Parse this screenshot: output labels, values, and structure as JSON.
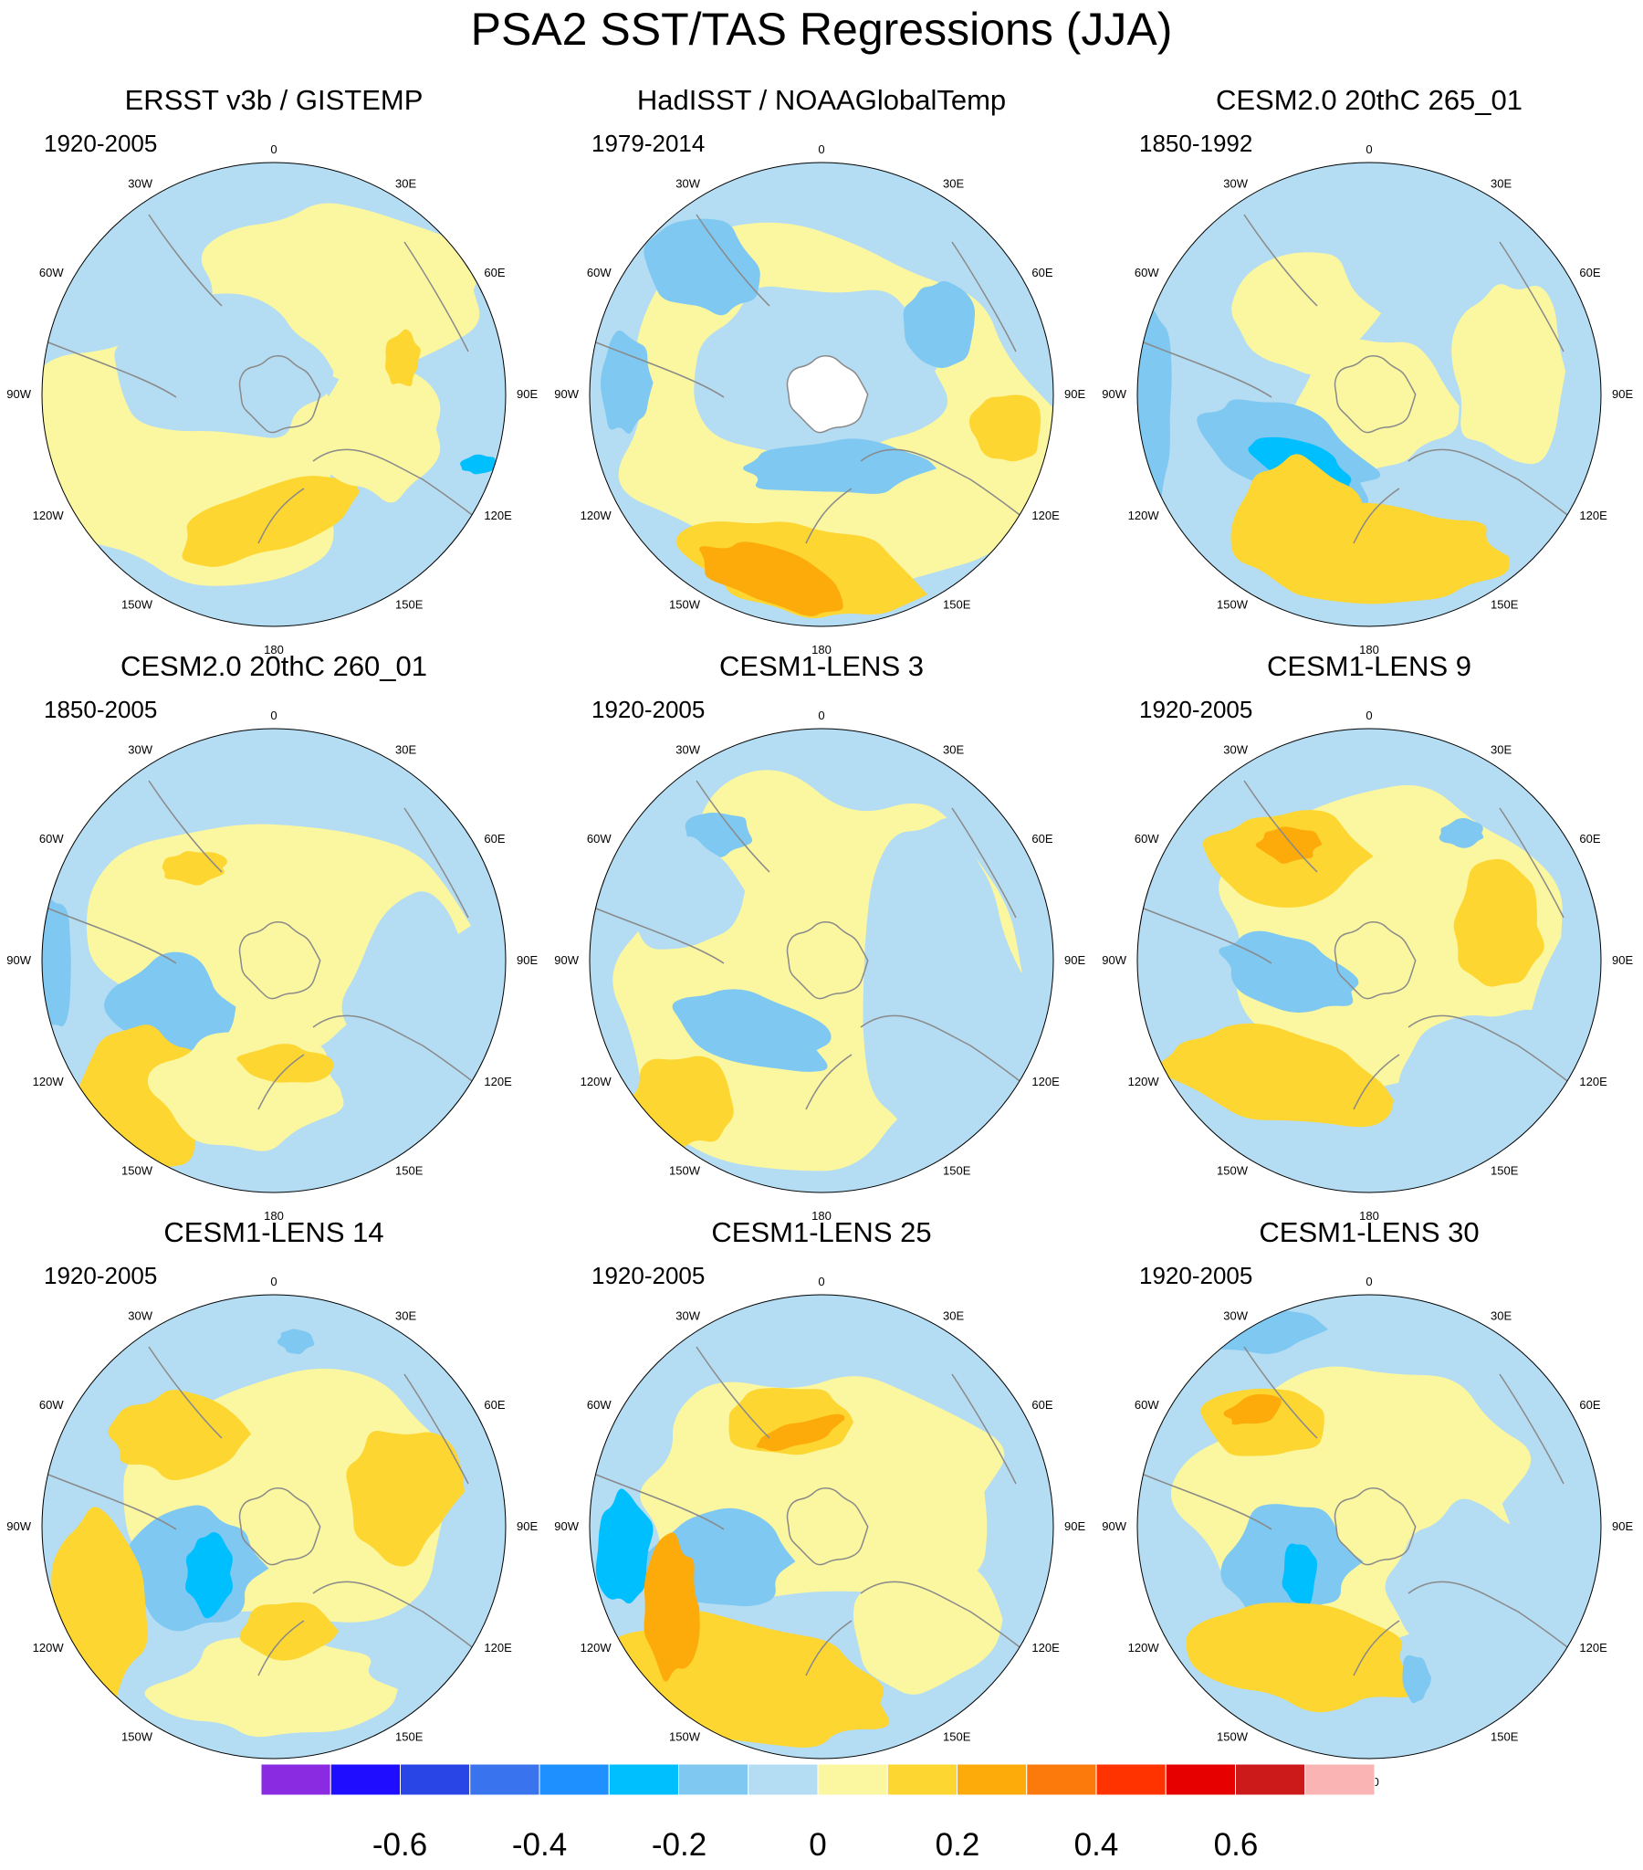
{
  "figure": {
    "title": "PSA2 SST/TAS Regressions (JJA)"
  },
  "panels": [
    {
      "title": "ERSST v3b / GISTEMP",
      "period": "1920-2005"
    },
    {
      "title": "HadISST / NOAAGlobalTemp",
      "period": "1979-2014"
    },
    {
      "title": "CESM2.0 20thC 265_01",
      "period": "1850-1992"
    },
    {
      "title": "CESM2.0 20thC 260_01",
      "period": "1850-2005"
    },
    {
      "title": "CESM1-LENS 3",
      "period": "1920-2005"
    },
    {
      "title": "CESM1-LENS 9",
      "period": "1920-2005"
    },
    {
      "title": "CESM1-LENS 14",
      "period": "1920-2005"
    },
    {
      "title": "CESM1-LENS 25",
      "period": "1920-2005"
    },
    {
      "title": "CESM1-LENS 30",
      "period": "1920-2005"
    }
  ],
  "longitude_labels": {
    "l0": "0",
    "l30e": "30E",
    "l60e": "60E",
    "l90e": "90E",
    "l120e": "120E",
    "l150e": "150E",
    "l180": "180",
    "l150w": "150W",
    "l120w": "120W",
    "l90w": "90W",
    "l60w": "60W",
    "l30w": "30W"
  },
  "colorbar": {
    "colors": [
      "#8a2be2",
      "#1e0dff",
      "#2a45e6",
      "#3a73ee",
      "#1e90ff",
      "#00bfff",
      "#7ec8f2",
      "#b4dcf2",
      "#fbf6a0",
      "#fdd631",
      "#fcab0a",
      "#fc7a0c",
      "#fe3300",
      "#e60000",
      "#cc1a1a",
      "#fbb4b4"
    ],
    "tick_labels": {
      "m06": "-0.6",
      "m04": "-0.4",
      "m02": "-0.2",
      "z0": "0",
      "p02": "0.2",
      "p04": "0.4",
      "p06": "0.6"
    }
  },
  "style": {
    "ocean_light_blue": "#b4dcf2",
    "pale_yellow": "#fbf6a0",
    "yellow": "#fdd631",
    "orange": "#fcab0a",
    "mid_blue": "#7ec8f2",
    "blue": "#00bfff",
    "coast": "#8a8a8a"
  }
}
